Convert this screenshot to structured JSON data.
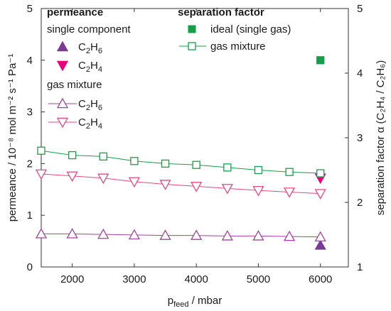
{
  "chart_data": {
    "type": "line",
    "xlabel_base": "p",
    "xlabel_sub": "feed",
    "xlabel_tail": " / mbar",
    "ylabel_left": "permeance / 10⁻⁸ mol m⁻² s⁻¹ Pa⁻¹",
    "ylabel_right": "separation factor α (C₂H₄ / C₂H₆)",
    "xlim": [
      1500,
      6450
    ],
    "ylim_left": [
      0,
      5
    ],
    "ylim_right": [
      1,
      5
    ],
    "x_ticks": [
      2000,
      3000,
      4000,
      5000,
      6000
    ],
    "y_ticks_left": [
      0,
      1,
      2,
      3,
      4,
      5
    ],
    "y_ticks_right": [
      1,
      2,
      3,
      4,
      5
    ],
    "grid": false,
    "legend": {
      "permeance_title": "permeance",
      "single_component_title": "single component",
      "gas_mixture_title": "gas mixture",
      "separation_title": "separation factor",
      "ideal_label": "ideal (single gas)",
      "gas_mixture_label": "gas mixture"
    },
    "series": [
      {
        "name": "C2H6",
        "group": "single component",
        "axis": "left",
        "marker": "triangle-up-filled",
        "color": "#7b3a96",
        "x": [
          6000
        ],
        "y": [
          0.42
        ]
      },
      {
        "name": "C2H4",
        "group": "single component",
        "axis": "left",
        "marker": "triangle-down-filled",
        "color": "#e6007e",
        "x": [
          6000
        ],
        "y": [
          1.72
        ]
      },
      {
        "name": "C2H6",
        "group": "gas mixture",
        "axis": "left",
        "marker": "triangle-up-open",
        "color": "#a0459c",
        "x": [
          1500,
          2000,
          2500,
          3000,
          3500,
          4000,
          4500,
          5000,
          5500,
          6000
        ],
        "y": [
          0.64,
          0.64,
          0.63,
          0.62,
          0.61,
          0.61,
          0.6,
          0.6,
          0.59,
          0.58
        ]
      },
      {
        "name": "C2H4",
        "group": "gas mixture",
        "axis": "left",
        "marker": "triangle-down-open",
        "color": "#e8487e",
        "x": [
          1500,
          2000,
          2500,
          3000,
          3500,
          4000,
          4500,
          5000,
          5500,
          6000
        ],
        "y": [
          1.8,
          1.76,
          1.72,
          1.65,
          1.6,
          1.56,
          1.52,
          1.48,
          1.45,
          1.42
        ]
      },
      {
        "name": "ideal (single gas)",
        "group": "separation factor",
        "axis": "right",
        "marker": "square-filled",
        "color": "#14a04a",
        "x": [
          6000
        ],
        "y": [
          4.2
        ]
      },
      {
        "name": "gas mixture",
        "group": "separation factor",
        "axis": "right",
        "marker": "square-open",
        "color": "#14a04a",
        "x": [
          1500,
          2000,
          2500,
          3000,
          3500,
          4000,
          4500,
          5000,
          5500,
          6000
        ],
        "y": [
          2.8,
          2.73,
          2.71,
          2.64,
          2.6,
          2.58,
          2.54,
          2.5,
          2.47,
          2.45
        ]
      }
    ]
  }
}
